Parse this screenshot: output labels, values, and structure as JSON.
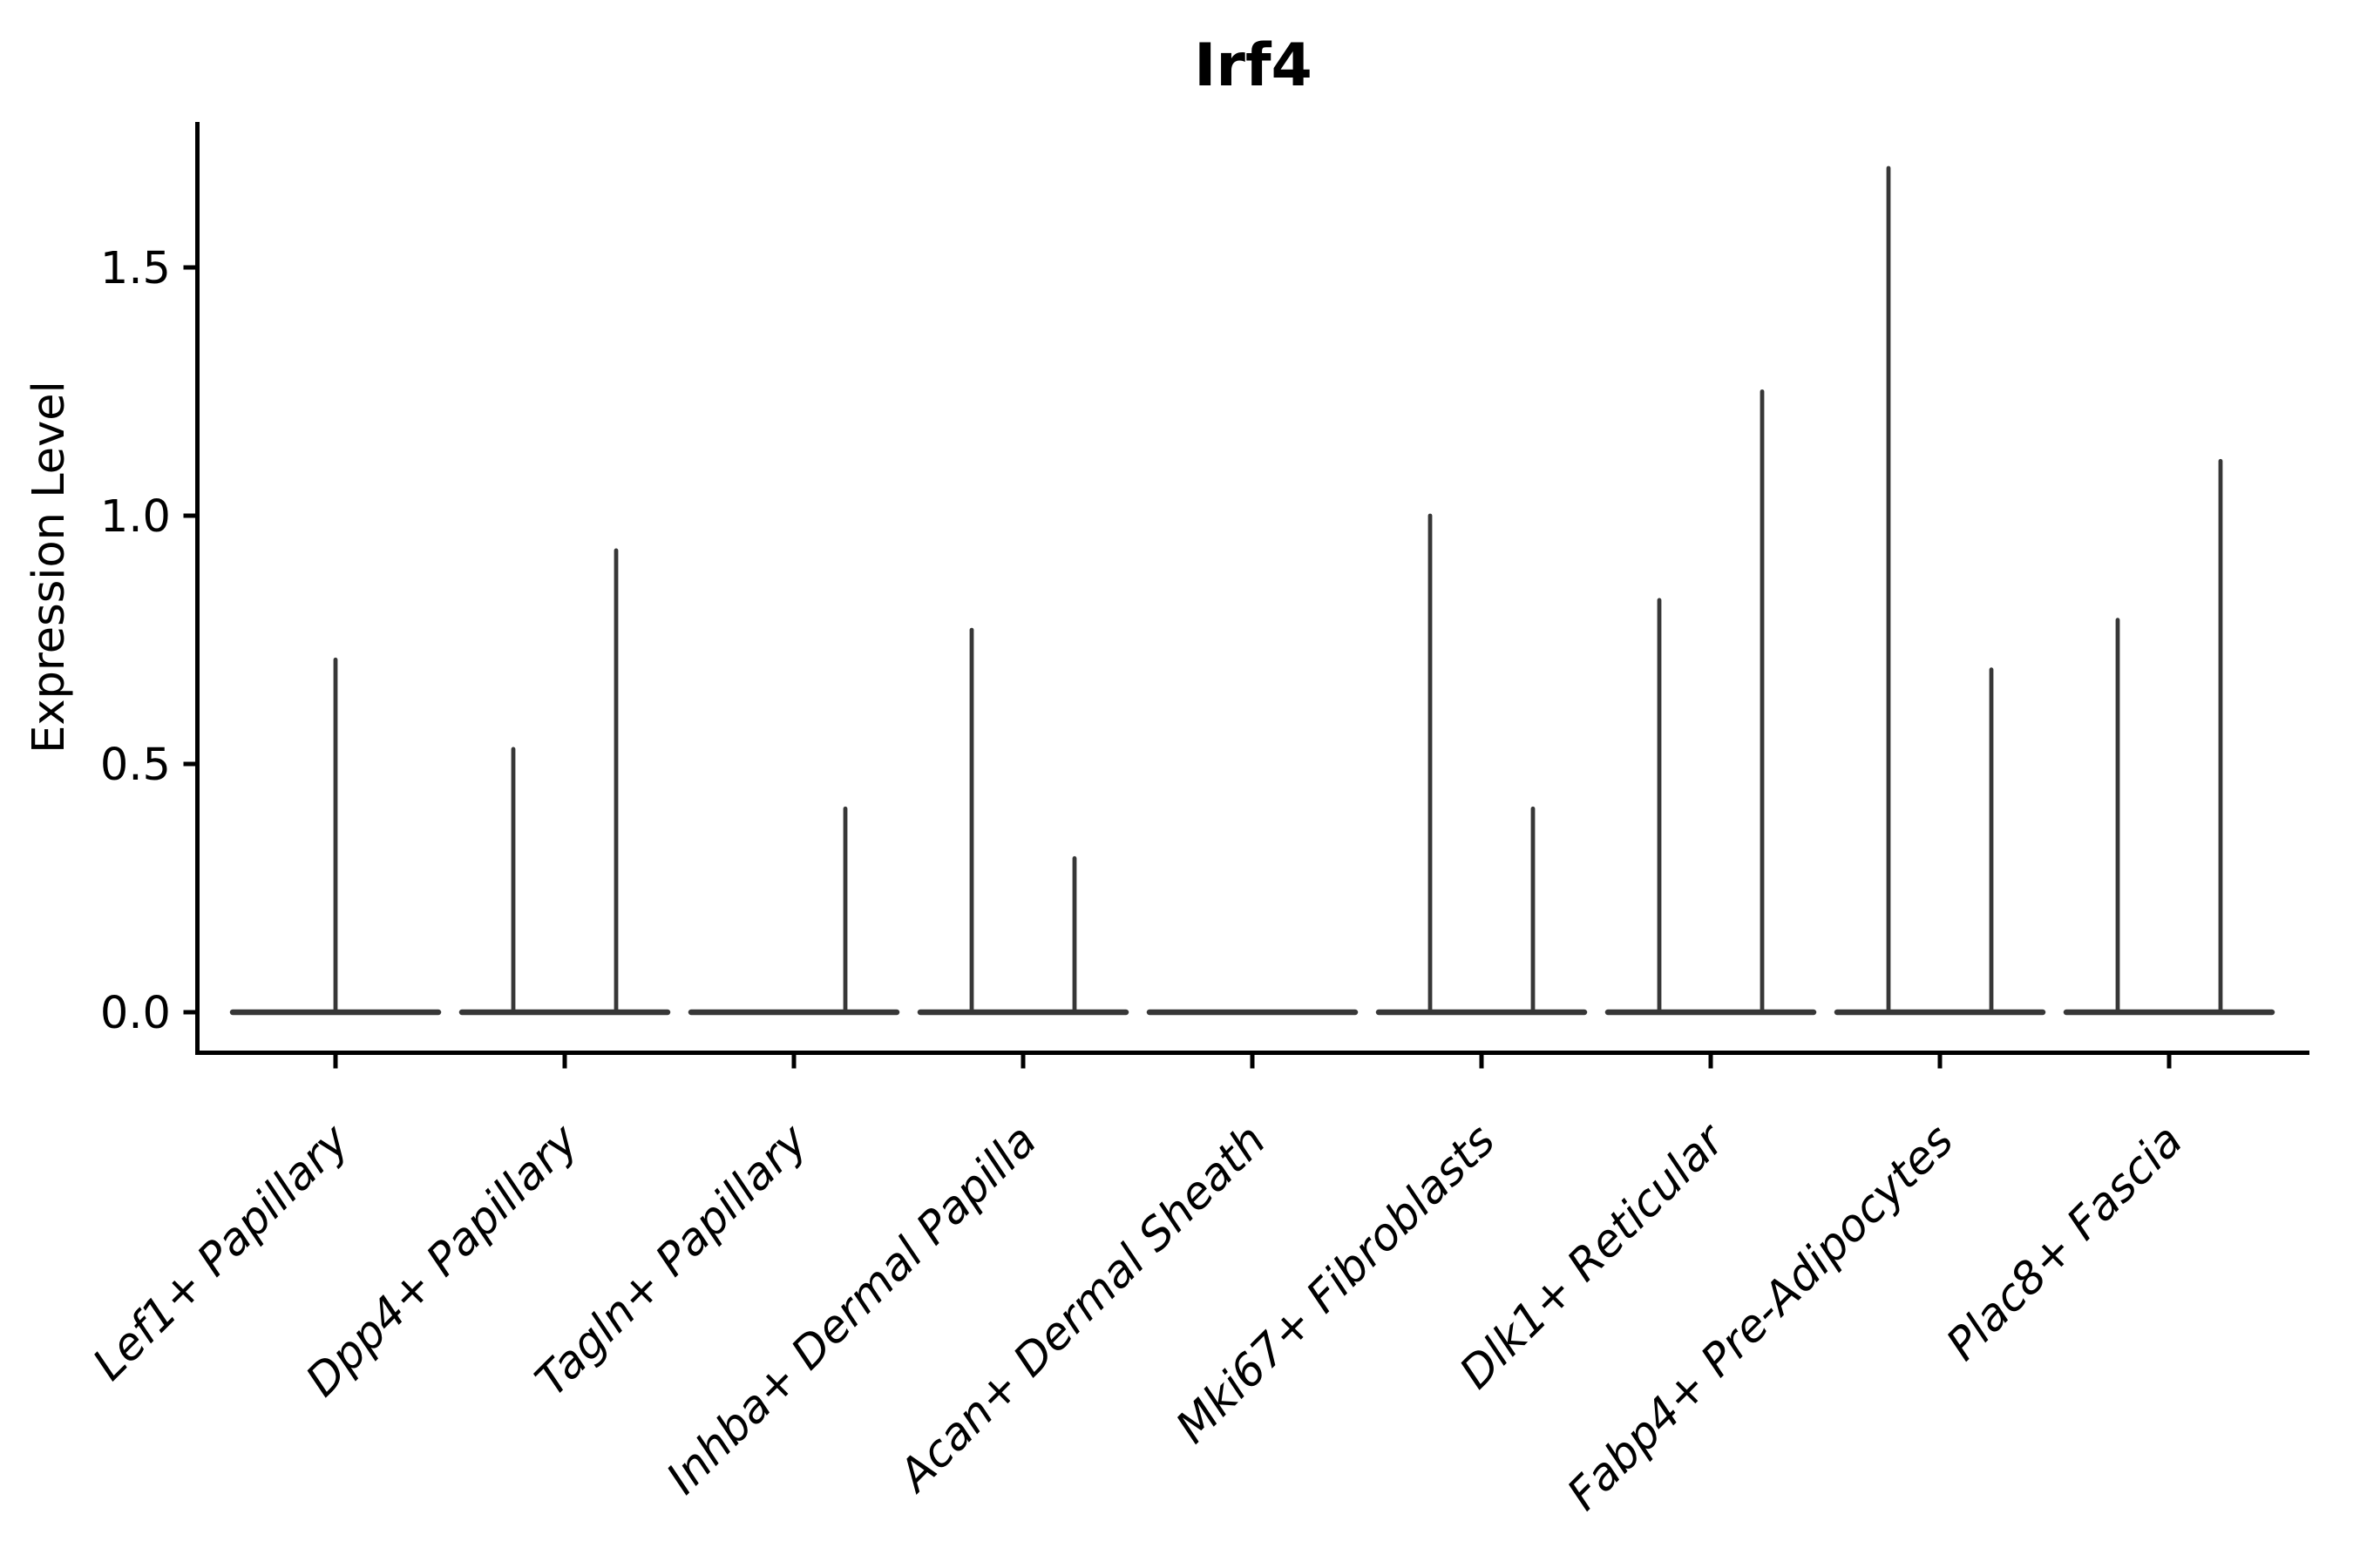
{
  "chart_data": {
    "type": "violin",
    "title": "Irf4",
    "xlabel": "",
    "ylabel": "Expression Level",
    "ytick_labels": [
      "0.0",
      "0.5",
      "1.0",
      "1.5"
    ],
    "yticks": [
      0.0,
      0.5,
      1.0,
      1.5
    ],
    "ylim": [
      -0.08,
      1.79
    ],
    "grid": false,
    "legend": "none",
    "violin_color": "#373737",
    "axis_color": "#000000",
    "note_shape": "each category shows a wide flat density bar at 0 plus thin spikes reaching the max expression value",
    "categories": [
      "Lef1+ Papillary",
      "Dpp4+ Papillary",
      "Tagln+ Papillary",
      "Inhba+ Dermal Papilla",
      "Acan+ Dermal Sheath",
      "Mki67+ Fibroblasts",
      "Dlk1+ Reticular",
      "Fabp4+ Pre-Adipocytes",
      "Plac8+ Fascia"
    ],
    "violins": [
      {
        "category": "Lef1+ Papillary",
        "baseline_at_zero": true,
        "spikes": [
          {
            "side": "center",
            "value": 0.71
          }
        ]
      },
      {
        "category": "Dpp4+ Papillary",
        "baseline_at_zero": true,
        "spikes": [
          {
            "side": "left",
            "value": 0.53
          },
          {
            "side": "right",
            "value": 0.93
          }
        ]
      },
      {
        "category": "Tagln+ Papillary",
        "baseline_at_zero": true,
        "spikes": [
          {
            "side": "right",
            "value": 0.41
          }
        ]
      },
      {
        "category": "Inhba+ Dermal Papilla",
        "baseline_at_zero": true,
        "spikes": [
          {
            "side": "left",
            "value": 0.77
          },
          {
            "side": "right",
            "value": 0.31
          }
        ]
      },
      {
        "category": "Acan+ Dermal Sheath",
        "baseline_at_zero": true,
        "spikes": []
      },
      {
        "category": "Mki67+ Fibroblasts",
        "baseline_at_zero": true,
        "spikes": [
          {
            "side": "left",
            "value": 1.0
          },
          {
            "side": "right",
            "value": 0.41
          }
        ]
      },
      {
        "category": "Dlk1+ Reticular",
        "baseline_at_zero": true,
        "spikes": [
          {
            "side": "left",
            "value": 0.83
          },
          {
            "side": "right",
            "value": 1.25
          }
        ]
      },
      {
        "category": "Fabp4+ Pre-Adipocytes",
        "baseline_at_zero": true,
        "spikes": [
          {
            "side": "left",
            "value": 1.7
          },
          {
            "side": "right",
            "value": 0.69
          }
        ]
      },
      {
        "category": "Plac8+ Fascia",
        "baseline_at_zero": true,
        "spikes": [
          {
            "side": "left",
            "value": 0.79
          },
          {
            "side": "right",
            "value": 1.11
          }
        ]
      }
    ]
  }
}
